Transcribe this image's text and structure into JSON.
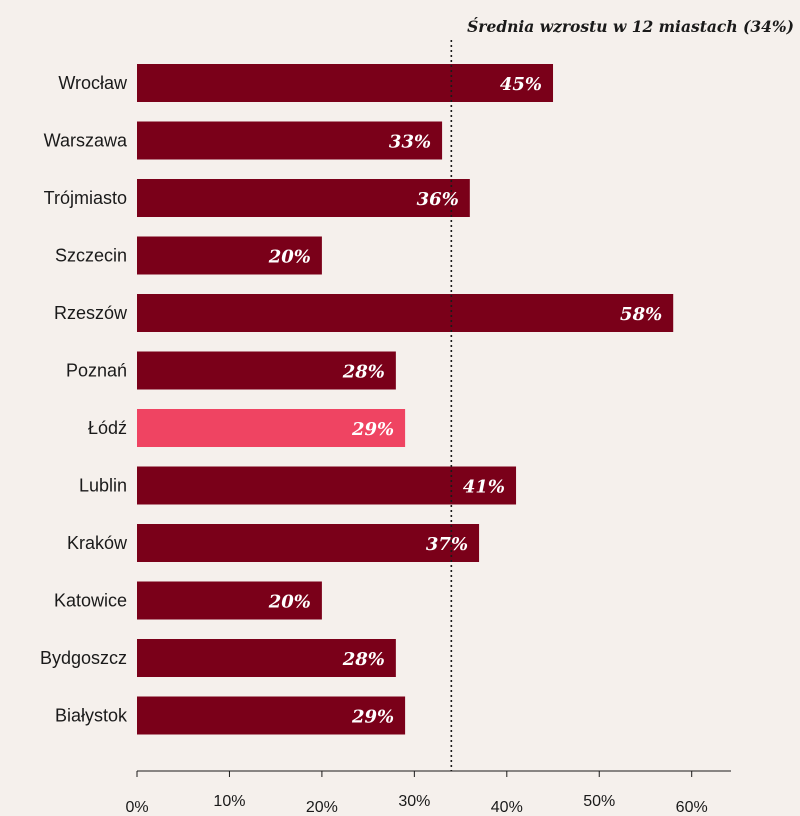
{
  "chart_data": {
    "type": "bar",
    "orientation": "horizontal",
    "categories": [
      "Wrocław",
      "Warszawa",
      "Trójmiasto",
      "Szczecin",
      "Rzeszów",
      "Poznań",
      "Łódź",
      "Lublin",
      "Kraków",
      "Katowice",
      "Bydgoszcz",
      "Białystok"
    ],
    "values": [
      45,
      33,
      36,
      20,
      58,
      28,
      29,
      41,
      37,
      20,
      28,
      29
    ],
    "value_labels": [
      "45%",
      "33%",
      "36%",
      "20%",
      "58%",
      "28%",
      "29%",
      "41%",
      "37%",
      "20%",
      "28%",
      "29%"
    ],
    "highlight_category": "Łódź",
    "colors": {
      "bar": "#7a0019",
      "highlight": "#ef4462",
      "background": "#f5f0ec",
      "text": "#1a1a1a",
      "data_label": "#ffffff"
    },
    "xlim": [
      0,
      64
    ],
    "x_ticks": [
      0,
      10,
      20,
      30,
      40,
      50,
      60
    ],
    "x_tick_labels": [
      "0%",
      "10%",
      "20%",
      "30%",
      "40%",
      "50%",
      "60%"
    ],
    "reference_line": {
      "value": 34,
      "label": "Średnia wzrostu w 12 miastach (34%)",
      "style": "dotted"
    },
    "title": "",
    "xlabel": "",
    "ylabel": "",
    "grid": false,
    "legend": "none"
  }
}
